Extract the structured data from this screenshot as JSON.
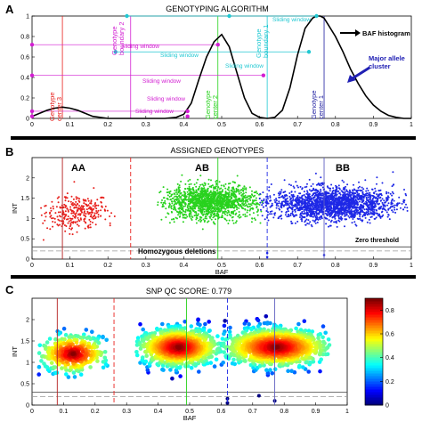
{
  "figure_title_color": "#000000",
  "colors": {
    "red": "#e8201c",
    "green": "#28d21e",
    "blue": "#1e28e6",
    "magenta": "#d21ed2",
    "cyan": "#20c8d2",
    "navy": "#1e1ea0",
    "gray": "#888888"
  },
  "panel_a": {
    "letter": "A",
    "title": "GENOTYPING ALGORITHM",
    "legend_label": "BAF histogram",
    "annotation": [
      "Major allele",
      "cluster"
    ],
    "labels": {
      "center3": [
        "Genotype",
        "center 3"
      ],
      "boundary2": [
        "Genotype",
        "boundary 2"
      ],
      "center2": [
        "Genotype",
        "center 2"
      ],
      "boundary1": [
        "Genotype",
        "boundary 1"
      ],
      "center1": [
        "Genotype",
        "center 1"
      ],
      "window": "Sliding window"
    },
    "xticks": [
      "0",
      "0.1",
      "0.2",
      "0.3",
      "0.4",
      "0.5",
      "0.6",
      "0.7",
      "0.8",
      "0.9",
      "1"
    ],
    "yticks": [
      "0",
      "0.2",
      "0.4",
      "0.6",
      "0.8",
      "1"
    ]
  },
  "panel_b": {
    "letter": "B",
    "title": "ASSIGNED GENOTYPES",
    "cluster_labels": [
      "AA",
      "AB",
      "BB"
    ],
    "zero_threshold": "Zero threshold",
    "homozygous": "Homozygous deletions",
    "xlabel": "BAF",
    "ylabel": "INT",
    "xticks": [
      "0",
      "0.1",
      "0.2",
      "0.3",
      "0.4",
      "0.5",
      "0.6",
      "0.7",
      "0.8",
      "0.9",
      "1"
    ],
    "yticks": [
      "0",
      "0.5",
      "1",
      "1.5",
      "2"
    ]
  },
  "panel_c": {
    "letter": "C",
    "title": "SNP QC SCORE: 0.779",
    "xlabel": "BAF",
    "ylabel": "INT",
    "xticks": [
      "0",
      "0.1",
      "0.2",
      "0.3",
      "0.4",
      "0.5",
      "0.6",
      "0.7",
      "0.8",
      "0.9",
      "1"
    ],
    "yticks": [
      "0",
      "0.5",
      "1",
      "1.5",
      "2"
    ],
    "colorbar_ticks": [
      "0",
      "0.2",
      "0.4",
      "0.6",
      "0.8"
    ]
  },
  "chart_data": [
    {
      "type": "line",
      "panel": "A",
      "xlim": [
        0,
        1
      ],
      "ylim": [
        0,
        1
      ],
      "series": [
        {
          "name": "BAF histogram",
          "x": [
            0,
            0.02,
            0.04,
            0.06,
            0.08,
            0.1,
            0.12,
            0.14,
            0.16,
            0.2,
            0.25,
            0.3,
            0.35,
            0.38,
            0.4,
            0.42,
            0.44,
            0.46,
            0.48,
            0.5,
            0.52,
            0.54,
            0.56,
            0.58,
            0.6,
            0.62,
            0.64,
            0.66,
            0.68,
            0.7,
            0.72,
            0.74,
            0.75,
            0.76,
            0.77,
            0.78,
            0.8,
            0.82,
            0.84,
            0.86,
            0.88,
            0.9,
            0.92,
            0.94,
            0.96,
            0.98,
            1.0
          ],
          "y": [
            0.02,
            0.05,
            0.08,
            0.1,
            0.11,
            0.1,
            0.08,
            0.05,
            0.02,
            0,
            0,
            0,
            0,
            0.01,
            0.04,
            0.15,
            0.38,
            0.6,
            0.75,
            0.82,
            0.7,
            0.45,
            0.2,
            0.05,
            0.01,
            0,
            0.01,
            0.08,
            0.3,
            0.62,
            0.88,
            0.98,
            1.0,
            1.0,
            0.98,
            0.92,
            0.8,
            0.65,
            0.48,
            0.34,
            0.22,
            0.13,
            0.07,
            0.03,
            0.01,
            0,
            0
          ]
        }
      ],
      "vlines": {
        "center3": 0.08,
        "boundary2": 0.26,
        "center2": 0.49,
        "boundary1": 0.62,
        "center1": 0.77
      },
      "windows_y": [
        0.72,
        0.42,
        0.65,
        0.07
      ],
      "points": [
        {
          "x": 0.0,
          "y": 0.72
        },
        {
          "x": 0.0,
          "y": 0.42
        },
        {
          "x": 0.0,
          "y": 0.07
        },
        {
          "x": 0.0,
          "y": 0.02
        },
        {
          "x": 0.25,
          "y": 1.0
        },
        {
          "x": 0.22,
          "y": 0.65
        },
        {
          "x": 0.41,
          "y": 0.07
        },
        {
          "x": 0.41,
          "y": 0.02
        },
        {
          "x": 0.49,
          "y": 0.72
        },
        {
          "x": 0.52,
          "y": 1.0
        },
        {
          "x": 0.75,
          "y": 1.0
        },
        {
          "x": 0.73,
          "y": 0.65
        },
        {
          "x": 0.61,
          "y": 0.42
        }
      ]
    },
    {
      "type": "scatter",
      "panel": "B",
      "xlim": [
        0,
        1
      ],
      "ylim": [
        0,
        2.5
      ],
      "clusters": [
        {
          "name": "AA",
          "color": "#e8201c",
          "x_range": [
            0.02,
            0.22
          ],
          "y_center": 1.15,
          "n": 300
        },
        {
          "name": "AB",
          "color": "#28d21e",
          "x_range": [
            0.33,
            0.61
          ],
          "y_center": 1.4,
          "n": 1500
        },
        {
          "name": "BB",
          "color": "#1e28e6",
          "x_range": [
            0.6,
            0.99
          ],
          "y_center": 1.35,
          "n": 2000
        }
      ],
      "vlines": {
        "center3": 0.08,
        "boundary2": 0.26,
        "center2": 0.49,
        "boundary1": 0.62,
        "center1": 0.77
      },
      "zero_threshold": 0.3,
      "homozygous_threshold": 0.2
    },
    {
      "type": "scatter",
      "panel": "C",
      "xlim": [
        0,
        1
      ],
      "ylim": [
        0,
        2.5
      ],
      "colorbar_range": [
        0,
        0.9
      ],
      "clusters": [
        {
          "x_range": [
            0.02,
            0.24
          ],
          "y_center": 1.2,
          "n": 350
        },
        {
          "x_range": [
            0.33,
            0.6
          ],
          "y_center": 1.35,
          "n": 900
        },
        {
          "x_range": [
            0.6,
            0.95
          ],
          "y_center": 1.35,
          "n": 1100
        }
      ],
      "vlines": {
        "center3": 0.08,
        "boundary2": 0.26,
        "center2": 0.49,
        "boundary1": 0.62,
        "center1": 0.77
      }
    }
  ]
}
